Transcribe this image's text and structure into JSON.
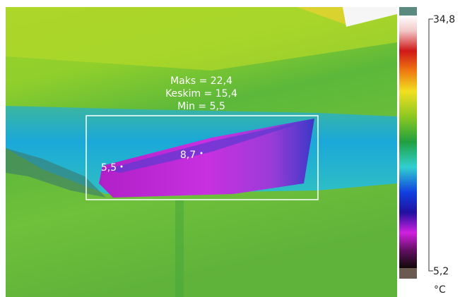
{
  "scale": {
    "max": "34,8",
    "min": "5,2",
    "unit": "°C"
  },
  "area": {
    "max": "Maks = 22,4",
    "mean": "Keskim = 15,4",
    "min": "Min = 5,5"
  },
  "spots": [
    "8,7",
    "5,5"
  ]
}
